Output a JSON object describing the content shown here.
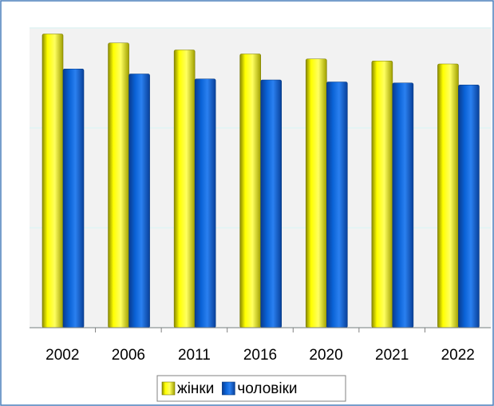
{
  "chart_data": {
    "type": "bar",
    "categories": [
      "2002",
      "2006",
      "2011",
      "2016",
      "2020",
      "2021",
      "2022"
    ],
    "series": [
      {
        "name": "жінки",
        "color": "#ffff00",
        "values": [
          29.4,
          28.5,
          27.8,
          27.4,
          26.9,
          26.7,
          26.4
        ]
      },
      {
        "name": "чоловіки",
        "color": "#0a62d6",
        "values": [
          25.9,
          25.4,
          24.9,
          24.8,
          24.6,
          24.5,
          24.3
        ]
      }
    ],
    "ylim": [
      0,
      30
    ],
    "yticks": [
      0,
      10,
      20,
      30
    ],
    "grid": true,
    "legend": "bottom"
  }
}
